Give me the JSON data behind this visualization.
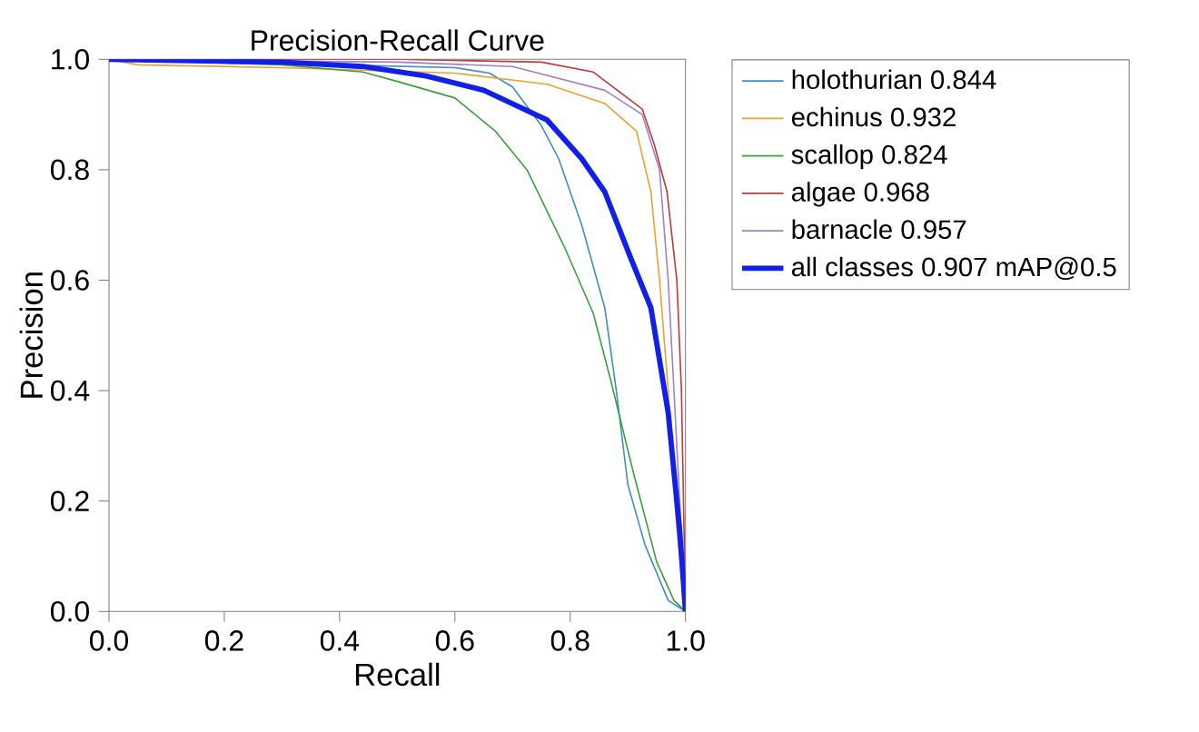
{
  "chart_data": {
    "type": "line",
    "title": "Precision-Recall Curve",
    "xlabel": "Recall",
    "ylabel": "Precision",
    "xlim": [
      0,
      1
    ],
    "ylim": [
      0,
      1
    ],
    "xticks": [
      {
        "value": 0,
        "label": "0.0"
      },
      {
        "value": 0.2,
        "label": "0.2"
      },
      {
        "value": 0.4,
        "label": "0.4"
      },
      {
        "value": 0.6,
        "label": "0.6"
      },
      {
        "value": 0.8,
        "label": "0.8"
      },
      {
        "value": 1,
        "label": "1.0"
      }
    ],
    "yticks": [
      {
        "value": 0,
        "label": "0.0"
      },
      {
        "value": 0.2,
        "label": "0.2"
      },
      {
        "value": 0.4,
        "label": "0.4"
      },
      {
        "value": 0.6,
        "label": "0.6"
      },
      {
        "value": 0.8,
        "label": "0.8"
      },
      {
        "value": 1,
        "label": "1.0"
      }
    ],
    "legend": "top right",
    "grid": false,
    "marker": "none",
    "line_style": "solid",
    "series": [
      {
        "name": "holothurian 0.844",
        "color": "#3d8fc0",
        "x": [
          0,
          0.4,
          0.6,
          0.66,
          0.7,
          0.75,
          0.78,
          0.82,
          0.86,
          0.88,
          0.9,
          0.93,
          0.97,
          1
        ],
        "values": [
          1,
          0.99,
          0.985,
          0.975,
          0.95,
          0.88,
          0.82,
          0.7,
          0.55,
          0.4,
          0.23,
          0.12,
          0.02,
          0
        ]
      },
      {
        "name": "echinus 0.932",
        "color": "#f0a030",
        "x": [
          0,
          0.05,
          0.3,
          0.6,
          0.76,
          0.86,
          0.915,
          0.94,
          0.955,
          0.97,
          0.985,
          1
        ],
        "values": [
          1,
          0.99,
          0.985,
          0.975,
          0.955,
          0.92,
          0.87,
          0.76,
          0.6,
          0.4,
          0.15,
          0
        ]
      },
      {
        "name": "scallop 0.824",
        "color": "#3aa03a",
        "x": [
          0,
          0.3,
          0.44,
          0.5,
          0.6,
          0.67,
          0.725,
          0.79,
          0.84,
          0.87,
          0.91,
          0.95,
          0.98,
          1
        ],
        "values": [
          1,
          0.99,
          0.977,
          0.96,
          0.93,
          0.87,
          0.8,
          0.66,
          0.54,
          0.42,
          0.25,
          0.09,
          0.02,
          0
        ]
      },
      {
        "name": "algae 0.968",
        "color": "#c0393b",
        "x": [
          0,
          0.5,
          0.75,
          0.84,
          0.925,
          0.946,
          0.968,
          0.985,
          0.993,
          1
        ],
        "values": [
          1,
          1,
          0.995,
          0.977,
          0.91,
          0.845,
          0.76,
          0.6,
          0.4,
          0
        ]
      },
      {
        "name": "barnacle 0.957",
        "color": "#a080c8",
        "x": [
          0,
          0.5,
          0.7,
          0.86,
          0.925,
          0.955,
          0.97,
          0.985,
          1
        ],
        "values": [
          1,
          0.995,
          0.987,
          0.944,
          0.9,
          0.8,
          0.6,
          0.3,
          0
        ]
      },
      {
        "name": "all classes 0.907 mAP@0.5",
        "color": "#1020e8",
        "x": [
          0,
          0.3,
          0.44,
          0.55,
          0.65,
          0.76,
          0.82,
          0.86,
          0.905,
          0.94,
          0.97,
          0.99,
          1
        ],
        "values": [
          1,
          0.995,
          0.987,
          0.97,
          0.944,
          0.89,
          0.82,
          0.76,
          0.64,
          0.55,
          0.36,
          0.145,
          0
        ]
      }
    ]
  }
}
